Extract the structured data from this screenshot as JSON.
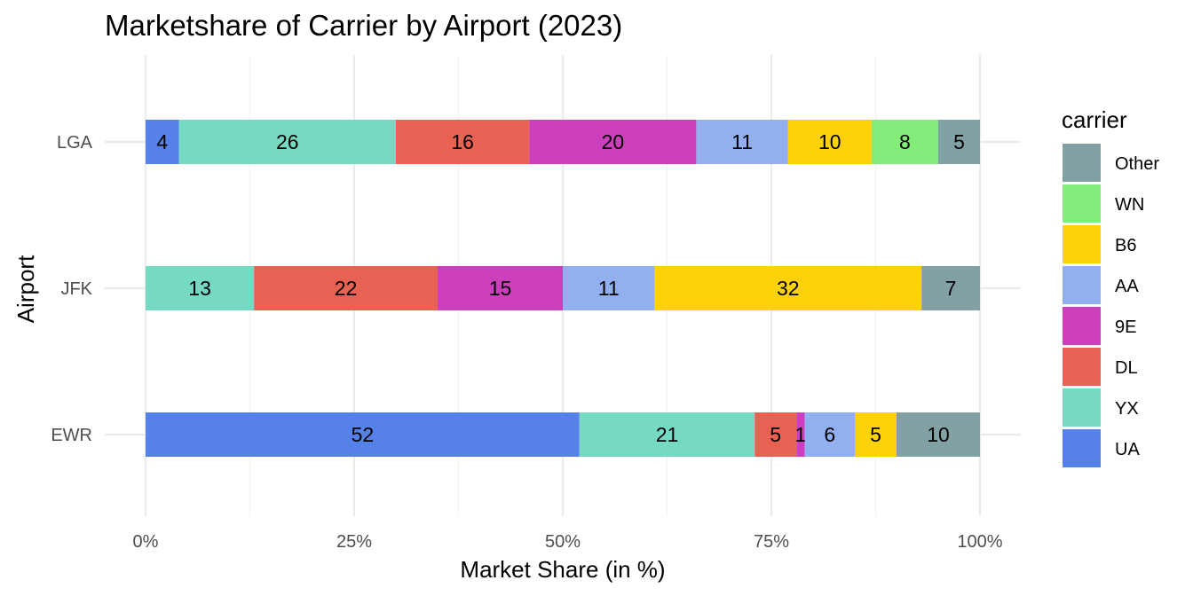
{
  "chart_data": {
    "type": "bar",
    "orientation": "horizontal",
    "stacked": true,
    "title": "Marketshare of Carrier by Airport (2023)",
    "xlabel": "Market Share (in %)",
    "ylabel": "Airport",
    "xlim": [
      0,
      100
    ],
    "x_ticks": [
      {
        "value": 0,
        "label": "0%"
      },
      {
        "value": 25,
        "label": "25%"
      },
      {
        "value": 50,
        "label": "50%"
      },
      {
        "value": 75,
        "label": "75%"
      },
      {
        "value": 100,
        "label": "100%"
      }
    ],
    "categories": [
      "LGA",
      "JFK",
      "EWR"
    ],
    "stack_order": [
      "UA",
      "YX",
      "DL",
      "9E",
      "AA",
      "B6",
      "WN",
      "Other"
    ],
    "series": [
      {
        "name": "UA",
        "color": "#5581e8",
        "values": [
          4,
          0,
          52
        ]
      },
      {
        "name": "YX",
        "color": "#76d9c1",
        "values": [
          26,
          13,
          21
        ]
      },
      {
        "name": "DL",
        "color": "#e86253",
        "values": [
          16,
          22,
          5
        ]
      },
      {
        "name": "9E",
        "color": "#cb3fbd",
        "values": [
          20,
          15,
          1
        ]
      },
      {
        "name": "AA",
        "color": "#92aff0",
        "values": [
          11,
          11,
          6
        ]
      },
      {
        "name": "B6",
        "color": "#fed20a",
        "values": [
          10,
          32,
          5
        ]
      },
      {
        "name": "WN",
        "color": "#83ec7a",
        "values": [
          8,
          0,
          0
        ]
      },
      {
        "name": "Other",
        "color": "#82a1a4",
        "values": [
          5,
          7,
          10
        ]
      }
    ],
    "legend": {
      "title": "carrier",
      "position": "right",
      "order": [
        "Other",
        "WN",
        "B6",
        "AA",
        "9E",
        "DL",
        "YX",
        "UA"
      ]
    },
    "grid": true
  }
}
